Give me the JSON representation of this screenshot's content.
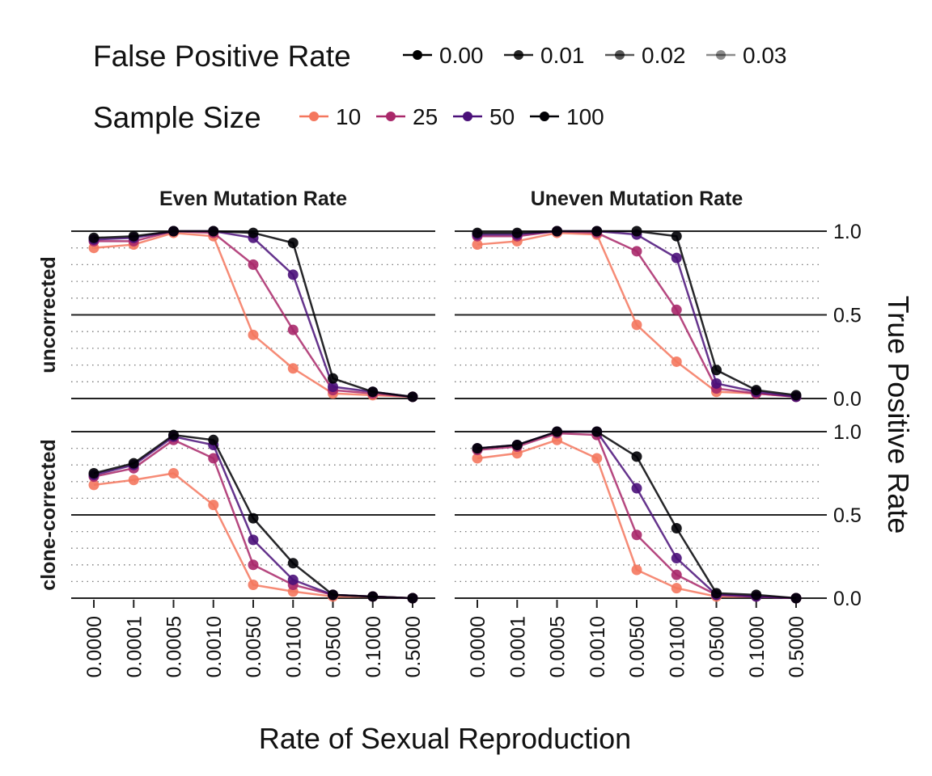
{
  "legend": {
    "fpr_title": "False Positive Rate",
    "fpr_items": [
      {
        "label": "0.00",
        "alpha": 1.0
      },
      {
        "label": "0.01",
        "alpha": 0.85
      },
      {
        "label": "0.02",
        "alpha": 0.65
      },
      {
        "label": "0.03",
        "alpha": 0.45
      }
    ],
    "size_title": "Sample Size",
    "size_items": [
      {
        "label": "10",
        "color": "#F4775E"
      },
      {
        "label": "25",
        "color": "#A9286A"
      },
      {
        "label": "50",
        "color": "#4A1079"
      },
      {
        "label": "100",
        "color": "#000004"
      }
    ]
  },
  "chart_data": {
    "type": "line",
    "xlabel": "Rate of Sexual Reproduction",
    "ylabel": "True Positive Rate",
    "ylim": [
      0,
      1
    ],
    "yticks": [
      "0.0",
      "0.5",
      "1.0"
    ],
    "categories": [
      "0.0000",
      "0.0001",
      "0.0005",
      "0.0010",
      "0.0050",
      "0.0100",
      "0.0500",
      "0.1000",
      "0.5000"
    ],
    "col_labels": [
      "Even Mutation Rate",
      "Uneven Mutation Rate"
    ],
    "row_labels": [
      "uncorrected",
      "clone-corrected"
    ],
    "panels": [
      {
        "col": "Even Mutation Rate",
        "row": "uncorrected",
        "series": [
          {
            "sample_size": "10",
            "values": [
              0.9,
              0.92,
              0.99,
              0.97,
              0.38,
              0.18,
              0.03,
              0.02,
              0.01
            ]
          },
          {
            "sample_size": "25",
            "values": [
              0.94,
              0.94,
              1.0,
              0.99,
              0.8,
              0.41,
              0.05,
              0.03,
              0.01
            ]
          },
          {
            "sample_size": "50",
            "values": [
              0.95,
              0.96,
              1.0,
              1.0,
              0.96,
              0.74,
              0.07,
              0.04,
              0.01
            ]
          },
          {
            "sample_size": "100",
            "values": [
              0.96,
              0.97,
              1.0,
              1.0,
              0.99,
              0.93,
              0.12,
              0.04,
              0.01
            ]
          }
        ]
      },
      {
        "col": "Uneven Mutation Rate",
        "row": "uncorrected",
        "series": [
          {
            "sample_size": "10",
            "values": [
              0.92,
              0.94,
              0.99,
              0.98,
              0.44,
              0.22,
              0.04,
              0.03,
              0.01
            ]
          },
          {
            "sample_size": "25",
            "values": [
              0.97,
              0.97,
              1.0,
              0.99,
              0.88,
              0.53,
              0.06,
              0.03,
              0.01
            ]
          },
          {
            "sample_size": "50",
            "values": [
              0.98,
              0.98,
              1.0,
              1.0,
              0.98,
              0.84,
              0.09,
              0.04,
              0.01
            ]
          },
          {
            "sample_size": "100",
            "values": [
              0.99,
              0.99,
              1.0,
              1.0,
              1.0,
              0.97,
              0.17,
              0.05,
              0.02
            ]
          }
        ]
      },
      {
        "col": "Even Mutation Rate",
        "row": "clone-corrected",
        "series": [
          {
            "sample_size": "10",
            "values": [
              0.68,
              0.71,
              0.75,
              0.56,
              0.08,
              0.04,
              0.01,
              0.01,
              0.0
            ]
          },
          {
            "sample_size": "25",
            "values": [
              0.73,
              0.78,
              0.95,
              0.84,
              0.2,
              0.08,
              0.02,
              0.01,
              0.0
            ]
          },
          {
            "sample_size": "50",
            "values": [
              0.74,
              0.8,
              0.97,
              0.92,
              0.35,
              0.11,
              0.02,
              0.01,
              0.0
            ]
          },
          {
            "sample_size": "100",
            "values": [
              0.75,
              0.81,
              0.98,
              0.95,
              0.48,
              0.21,
              0.02,
              0.01,
              0.0
            ]
          }
        ]
      },
      {
        "col": "Uneven Mutation Rate",
        "row": "clone-corrected",
        "series": [
          {
            "sample_size": "10",
            "values": [
              0.84,
              0.87,
              0.95,
              0.84,
              0.17,
              0.06,
              0.01,
              0.01,
              0.0
            ]
          },
          {
            "sample_size": "25",
            "values": [
              0.89,
              0.91,
              0.99,
              0.98,
              0.38,
              0.14,
              0.02,
              0.01,
              0.0
            ]
          },
          {
            "sample_size": "50",
            "values": [
              0.9,
              0.92,
              1.0,
              1.0,
              0.66,
              0.24,
              0.02,
              0.01,
              0.0
            ]
          },
          {
            "sample_size": "100",
            "values": [
              0.9,
              0.92,
              1.0,
              1.0,
              0.85,
              0.42,
              0.03,
              0.02,
              0.0
            ]
          }
        ]
      }
    ]
  }
}
